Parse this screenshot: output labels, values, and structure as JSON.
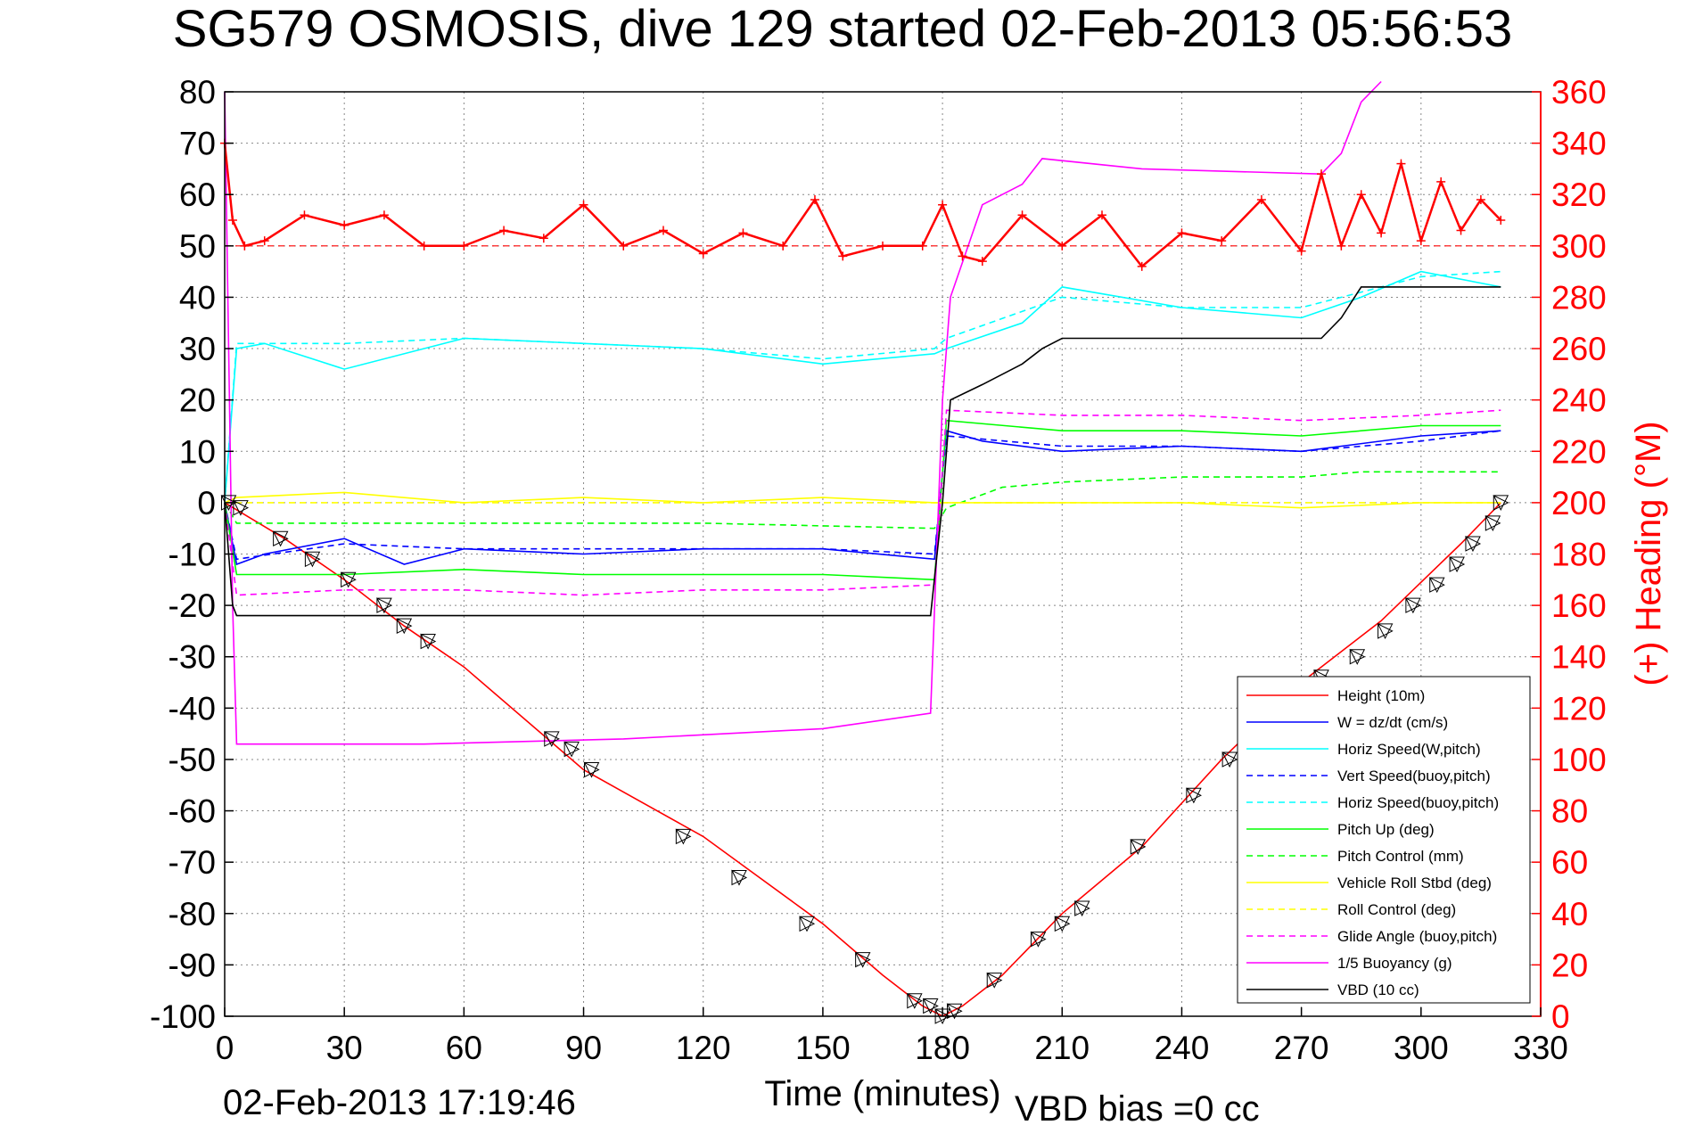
{
  "title": "SG579 OSMOSIS, dive 129 started 02-Feb-2013 05:56:53",
  "footer": {
    "timestamp": "02-Feb-2013 17:19:46",
    "vbd_bias": "VBD bias =0 cc"
  },
  "colors": {
    "height": "#ff0000",
    "w": "#0000ff",
    "horiz_w": "#00ffff",
    "vert_buoy": "#0000ff",
    "horiz_buoy": "#00ffff",
    "pitch": "#00ff00",
    "pitch_ctrl": "#00ff00",
    "roll": "#ffff00",
    "roll_ctrl": "#ffff00",
    "glide": "#ff00ff",
    "buoyancy": "#ff00ff",
    "vbd": "#000000",
    "heading": "#ff0000"
  },
  "chart_data": {
    "type": "line",
    "title": "SG579 OSMOSIS, dive 129 started 02-Feb-2013 05:56:53",
    "xlabel": "Time (minutes)",
    "ylabel": "",
    "y2label": "(+) Heading (°M)",
    "xlim": [
      0,
      330
    ],
    "ylim": [
      -100,
      80
    ],
    "y2lim": [
      0,
      360
    ],
    "xticks": [
      "0",
      "30",
      "60",
      "90",
      "120",
      "150",
      "180",
      "210",
      "240",
      "270",
      "300",
      "330"
    ],
    "yticks": [
      "80",
      "70",
      "60",
      "50",
      "40",
      "30",
      "20",
      "10",
      "0",
      "-10",
      "-20",
      "-30",
      "-40",
      "-50",
      "-60",
      "-70",
      "-80",
      "-90",
      "-100"
    ],
    "y2ticks": [
      "360",
      "340",
      "320",
      "300",
      "280",
      "260",
      "240",
      "220",
      "200",
      "180",
      "160",
      "140",
      "120",
      "100",
      "80",
      "60",
      "40",
      "20",
      "0"
    ],
    "grid": true,
    "legend_position": "bottom-right",
    "series": [
      {
        "key": "height",
        "name": "Height (10m)",
        "style": "solid",
        "x": [
          0,
          15,
          30,
          45,
          60,
          90,
          120,
          150,
          165,
          175,
          180,
          185,
          195,
          210,
          230,
          250,
          270,
          290,
          310,
          320
        ],
        "y": [
          0,
          -7,
          -15,
          -24,
          -32,
          -52,
          -65,
          -82,
          -92,
          -98,
          -100,
          -98,
          -92,
          -80,
          -67,
          -50,
          -35,
          -23,
          -8,
          0
        ]
      },
      {
        "key": "w",
        "name": "W = dz/dt (cm/s)",
        "style": "solid",
        "x": [
          0,
          3,
          10,
          30,
          45,
          60,
          90,
          120,
          150,
          178,
          181,
          190,
          210,
          240,
          270,
          300,
          320
        ],
        "y": [
          0,
          -12,
          -10,
          -7,
          -12,
          -9,
          -10,
          -9,
          -9,
          -11,
          14,
          12,
          10,
          11,
          10,
          13,
          14
        ]
      },
      {
        "key": "horiz_w",
        "name": "Horiz Speed(W,pitch)",
        "style": "solid",
        "x": [
          0,
          3,
          10,
          30,
          60,
          90,
          120,
          150,
          178,
          181,
          200,
          210,
          240,
          270,
          285,
          300,
          320
        ],
        "y": [
          0,
          30,
          31,
          26,
          32,
          31,
          30,
          27,
          29,
          30,
          35,
          42,
          38,
          36,
          40,
          45,
          42
        ]
      },
      {
        "key": "vert_buoy",
        "name": "Vert Speed(buoy,pitch)",
        "style": "dashed",
        "x": [
          0,
          3,
          30,
          60,
          90,
          120,
          150,
          178,
          181,
          210,
          240,
          270,
          300,
          320
        ],
        "y": [
          0,
          -11,
          -8,
          -9,
          -9,
          -9,
          -9,
          -10,
          13,
          11,
          11,
          10,
          12,
          14
        ]
      },
      {
        "key": "horiz_buoy",
        "name": "Horiz Speed(buoy,pitch)",
        "style": "dashed",
        "x": [
          0,
          3,
          30,
          60,
          90,
          120,
          150,
          178,
          181,
          210,
          240,
          270,
          300,
          320
        ],
        "y": [
          0,
          31,
          31,
          32,
          31,
          30,
          28,
          30,
          32,
          40,
          38,
          38,
          44,
          45
        ]
      },
      {
        "key": "pitch",
        "name": "Pitch Up (deg)",
        "style": "solid",
        "x": [
          0,
          3,
          30,
          60,
          90,
          120,
          150,
          178,
          181,
          210,
          240,
          270,
          300,
          320
        ],
        "y": [
          0,
          -14,
          -14,
          -13,
          -14,
          -14,
          -14,
          -15,
          16,
          14,
          14,
          13,
          15,
          15
        ]
      },
      {
        "key": "pitch_ctrl",
        "name": "Pitch Control (mm)",
        "style": "dashed",
        "x": [
          0,
          3,
          60,
          120,
          178,
          181,
          195,
          210,
          240,
          270,
          285,
          320
        ],
        "y": [
          0,
          -4,
          -4,
          -4,
          -5,
          -1,
          3,
          4,
          5,
          5,
          6,
          6
        ]
      },
      {
        "key": "roll",
        "name": "Vehicle Roll Stbd (deg)",
        "style": "solid",
        "x": [
          0,
          3,
          30,
          60,
          90,
          120,
          150,
          178,
          181,
          210,
          240,
          270,
          300,
          320
        ],
        "y": [
          0,
          1,
          2,
          0,
          1,
          0,
          1,
          0,
          0,
          0,
          0,
          -1,
          0,
          0
        ]
      },
      {
        "key": "roll_ctrl",
        "name": "Roll Control (deg)",
        "style": "dashed",
        "x": [
          0,
          3,
          60,
          120,
          178,
          181,
          240,
          320
        ],
        "y": [
          0,
          0,
          0,
          0,
          0,
          0,
          0,
          0
        ]
      },
      {
        "key": "glide",
        "name": "Glide Angle (buoy,pitch)",
        "style": "dashed",
        "x": [
          0,
          3,
          30,
          60,
          90,
          120,
          150,
          178,
          181,
          210,
          240,
          270,
          300,
          320
        ],
        "y": [
          0,
          -18,
          -17,
          -17,
          -18,
          -17,
          -17,
          -16,
          18,
          17,
          17,
          16,
          17,
          18
        ]
      },
      {
        "key": "buoyancy",
        "name": "1/5 Buoyancy (g)",
        "style": "solid",
        "x": [
          0,
          2,
          3,
          50,
          100,
          150,
          177,
          180,
          182,
          190,
          200,
          205,
          230,
          275,
          280,
          285,
          290
        ],
        "y": [
          80,
          -20,
          -47,
          -47,
          -46,
          -44,
          -41,
          20,
          40,
          58,
          62,
          67,
          65,
          64,
          68,
          78,
          82
        ]
      },
      {
        "key": "vbd",
        "name": "VBD (10 cc)",
        "style": "solid",
        "x": [
          0,
          2,
          3,
          100,
          177,
          180,
          182,
          190,
          200,
          205,
          210,
          230,
          275,
          280,
          285,
          320
        ],
        "y": [
          0,
          -20,
          -22,
          -22,
          -22,
          0,
          20,
          23,
          27,
          30,
          32,
          32,
          32,
          36,
          42,
          42
        ]
      }
    ],
    "heading": {
      "name": "(+) Heading (°M)",
      "reference": 300,
      "x": [
        0,
        2,
        5,
        10,
        20,
        30,
        40,
        50,
        60,
        70,
        80,
        90,
        100,
        110,
        120,
        130,
        140,
        148,
        155,
        165,
        175,
        180,
        185,
        190,
        200,
        210,
        220,
        230,
        240,
        250,
        260,
        270,
        275,
        280,
        285,
        290,
        295,
        300,
        305,
        310,
        315,
        320
      ],
      "y": [
        340,
        310,
        300,
        302,
        312,
        308,
        312,
        300,
        300,
        306,
        303,
        316,
        300,
        306,
        297,
        305,
        300,
        318,
        296,
        300,
        300,
        316,
        296,
        294,
        312,
        300,
        312,
        292,
        305,
        302,
        318,
        298,
        328,
        300,
        320,
        305,
        332,
        302,
        325,
        306,
        318,
        310
      ]
    },
    "markers": {
      "x": [
        1,
        4,
        14,
        22,
        31,
        40,
        45,
        51,
        82,
        87,
        92,
        115,
        129,
        146,
        160,
        173,
        177,
        180,
        183,
        193,
        204,
        210,
        215,
        229,
        243,
        252,
        265,
        275,
        284,
        291,
        298,
        304,
        309,
        313,
        318,
        320
      ],
      "y": [
        0,
        -1,
        -7,
        -11,
        -15,
        -20,
        -24,
        -27,
        -46,
        -48,
        -52,
        -65,
        -73,
        -82,
        -89,
        -97,
        -98,
        -100,
        -99,
        -93,
        -85,
        -82,
        -79,
        -67,
        -57,
        -50,
        -41,
        -34,
        -30,
        -25,
        -20,
        -16,
        -12,
        -8,
        -4,
        0
      ]
    }
  },
  "legend": [
    {
      "key": "height",
      "label": "Height (10m)",
      "style": "solid"
    },
    {
      "key": "w",
      "label": "W = dz/dt (cm/s)",
      "style": "solid"
    },
    {
      "key": "horiz_w",
      "label": "Horiz Speed(W,pitch)",
      "style": "solid"
    },
    {
      "key": "vert_buoy",
      "label": "Vert Speed(buoy,pitch)",
      "style": "dashed"
    },
    {
      "key": "horiz_buoy",
      "label": "Horiz Speed(buoy,pitch)",
      "style": "dashed"
    },
    {
      "key": "pitch",
      "label": "Pitch Up (deg)",
      "style": "solid"
    },
    {
      "key": "pitch_ctrl",
      "label": "Pitch Control (mm)",
      "style": "dashed"
    },
    {
      "key": "roll",
      "label": "Vehicle Roll Stbd (deg)",
      "style": "solid"
    },
    {
      "key": "roll_ctrl",
      "label": "Roll Control (deg)",
      "style": "dashed"
    },
    {
      "key": "glide",
      "label": "Glide Angle (buoy,pitch)",
      "style": "dashed"
    },
    {
      "key": "buoyancy",
      "label": "1/5 Buoyancy (g)",
      "style": "solid"
    },
    {
      "key": "vbd",
      "label": "VBD (10 cc)",
      "style": "solid"
    }
  ]
}
